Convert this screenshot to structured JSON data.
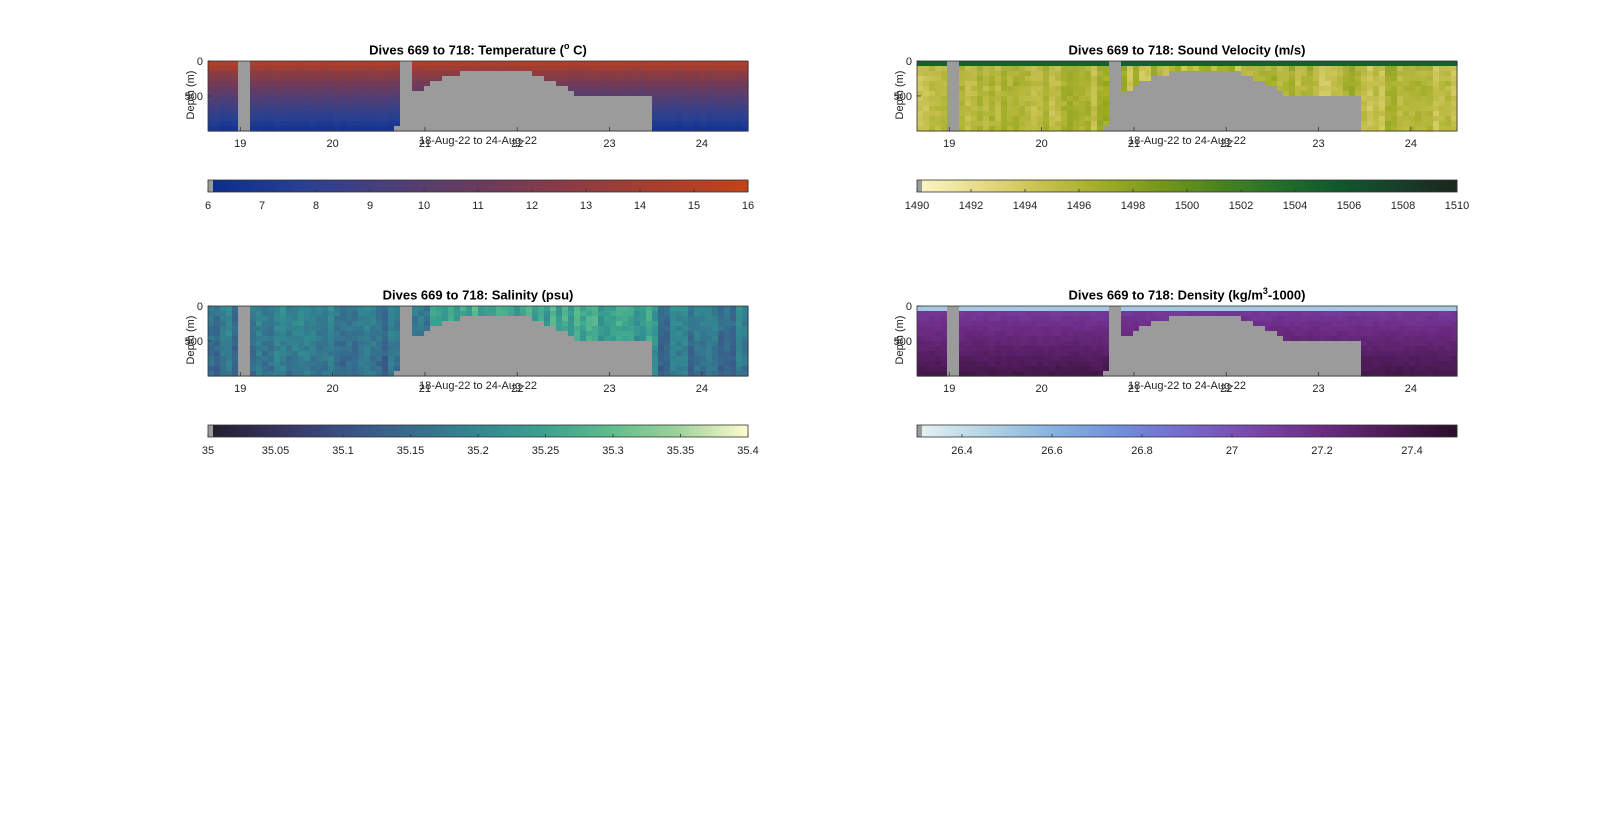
{
  "chart_data": [
    {
      "type": "heatmap",
      "title_main": "Dives 669 to 718: Temperature (",
      "title_sup": "o",
      "title_tail": " C)",
      "ylabel": "Depth (m)",
      "xlabel": "18-Aug-22 to 24-Aug-22",
      "x_ticks": [
        "19",
        "20",
        "21",
        "22",
        "23",
        "24"
      ],
      "y_ticks": [
        "0",
        "500"
      ],
      "xlim": [
        18.65,
        24.5
      ],
      "ylim": [
        0,
        1000
      ],
      "colorbar_ticks": [
        "6",
        "7",
        "8",
        "9",
        "10",
        "11",
        "12",
        "13",
        "14",
        "15",
        "16"
      ],
      "colorbar_range": [
        6,
        16
      ],
      "colormap": [
        "#0a2d8c",
        "#274092",
        "#4a3f7a",
        "#6a3b5e",
        "#8a3c44",
        "#a83e2e",
        "#c2421a"
      ],
      "nodata_color": "#9b9b9b",
      "field": "temperature",
      "surface_value": 15.5,
      "deep_value": 6.5
    },
    {
      "type": "heatmap",
      "title_main": "Dives 669 to 718: Sound Velocity (m/s)",
      "title_sup": "",
      "title_tail": "",
      "ylabel": "Depth (m)",
      "xlabel": "18-Aug-22 to 24-Aug-22",
      "x_ticks": [
        "19",
        "20",
        "21",
        "22",
        "23",
        "24"
      ],
      "y_ticks": [
        "0",
        "500"
      ],
      "xlim": [
        18.65,
        24.5
      ],
      "ylim": [
        0,
        1000
      ],
      "colorbar_ticks": [
        "1490",
        "1492",
        "1494",
        "1496",
        "1498",
        "1500",
        "1502",
        "1504",
        "1506",
        "1508",
        "1510"
      ],
      "colorbar_range": [
        1490,
        1510
      ],
      "colormap": [
        "#fbf5c4",
        "#e7dc8a",
        "#c9c251",
        "#a3ae2a",
        "#77991b",
        "#4c841f",
        "#25702a",
        "#0f5a2c",
        "#17402a",
        "#1b261d"
      ],
      "nodata_color": "#9b9b9b",
      "field": "sound_velocity",
      "surface_value": 1504,
      "deep_value": 1493
    },
    {
      "type": "heatmap",
      "title_main": "Dives 669 to 718: Salinity (psu)",
      "title_sup": "",
      "title_tail": "",
      "ylabel": "Depth (m)",
      "xlabel": "18-Aug-22 to 24-Aug-22",
      "x_ticks": [
        "19",
        "20",
        "21",
        "22",
        "23",
        "24"
      ],
      "y_ticks": [
        "0",
        "500"
      ],
      "xlim": [
        18.65,
        24.5
      ],
      "ylim": [
        0,
        1000
      ],
      "colorbar_ticks": [
        "35",
        "35.05",
        "35.1",
        "35.15",
        "35.2",
        "35.25",
        "35.3",
        "35.35",
        "35.4"
      ],
      "colorbar_range": [
        35,
        35.4
      ],
      "colormap": [
        "#231c2e",
        "#35335f",
        "#3b4f85",
        "#366c8e",
        "#328891",
        "#3aa38f",
        "#5fbd8d",
        "#9ed39b",
        "#fdfacb"
      ],
      "nodata_color": "#9b9b9b",
      "field": "salinity",
      "surface_value": 35.2,
      "deep_value": 35.17
    },
    {
      "type": "heatmap",
      "title_main": "Dives 669 to 718: Density (kg/m",
      "title_sup": "3",
      "title_tail": "-1000)",
      "ylabel": "Depth (m)",
      "xlabel": "18-Aug-22 to 24-Aug-22",
      "x_ticks": [
        "19",
        "20",
        "21",
        "22",
        "23",
        "24"
      ],
      "y_ticks": [
        "0",
        "500"
      ],
      "xlim": [
        18.65,
        24.5
      ],
      "ylim": [
        0,
        1000
      ],
      "colorbar_ticks": [
        "26.4",
        "26.6",
        "26.8",
        "27",
        "27.2",
        "27.4"
      ],
      "colorbar_range": [
        26.3,
        27.5
      ],
      "colormap": [
        "#e7f1f2",
        "#b3d4e4",
        "#86b2e1",
        "#6f8fdc",
        "#7568cc",
        "#7a46ac",
        "#6c2b84",
        "#4e1b58",
        "#2b0f2c"
      ],
      "nodata_color": "#9b9b9b",
      "field": "density",
      "surface_value": 26.4,
      "deep_value": 27.35
    }
  ]
}
